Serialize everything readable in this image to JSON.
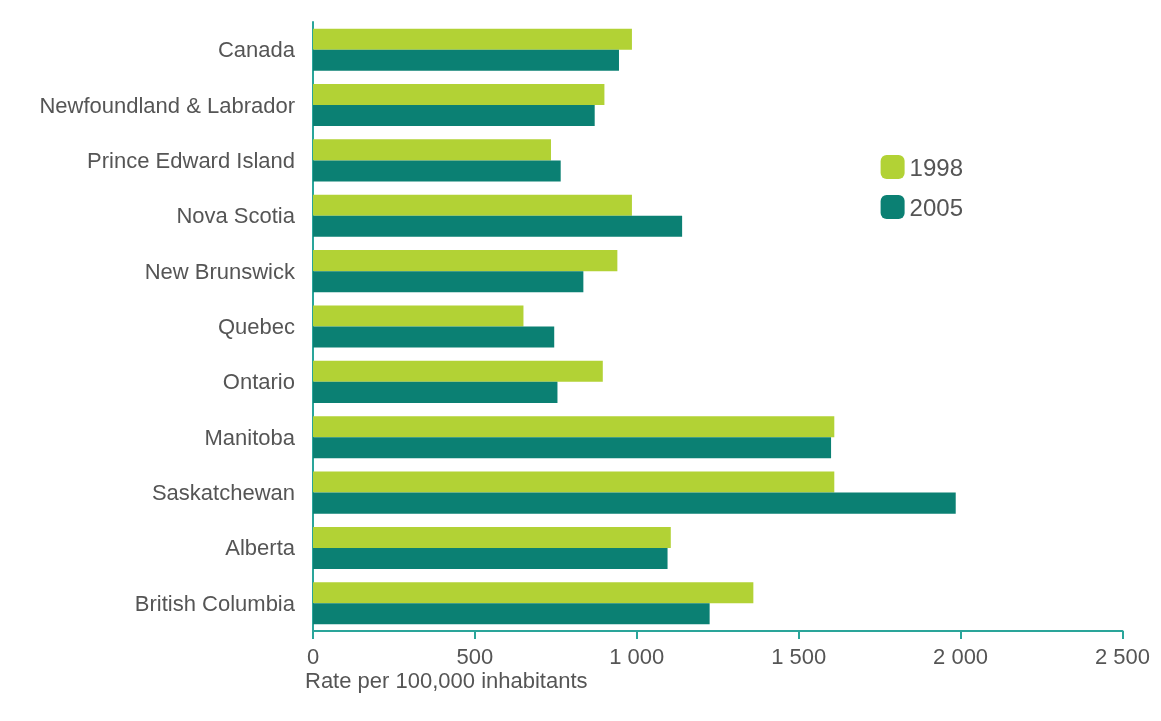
{
  "chart_data": {
    "type": "bar",
    "orientation": "horizontal",
    "xlabel": "Rate per 100,000 inhabitants",
    "categories": [
      "Canada",
      "Newfoundland & Labrador",
      "Prince Edward Island",
      "Nova Scotia",
      "New Brunswick",
      "Quebec",
      "Ontario",
      "Manitoba",
      "Saskatchewan",
      "Alberta",
      "British Columbia"
    ],
    "series": [
      {
        "name": "1998",
        "color": "#b2d235",
        "values": [
          985,
          900,
          735,
          985,
          940,
          650,
          895,
          1610,
          1610,
          1105,
          1360
        ]
      },
      {
        "name": "2005",
        "color": "#0b8073",
        "values": [
          945,
          870,
          765,
          1140,
          835,
          745,
          755,
          1600,
          1985,
          1095,
          1225
        ]
      }
    ],
    "xlim": [
      0,
      2500
    ],
    "xticks": [
      0,
      500,
      {
        "value": 1000,
        "label": "1 000"
      },
      {
        "value": 1500,
        "label": "1 500"
      },
      {
        "value": 2000,
        "label": "2 000"
      },
      {
        "value": 2500,
        "label": "2 500"
      }
    ],
    "grid": false,
    "legend": "top right"
  }
}
